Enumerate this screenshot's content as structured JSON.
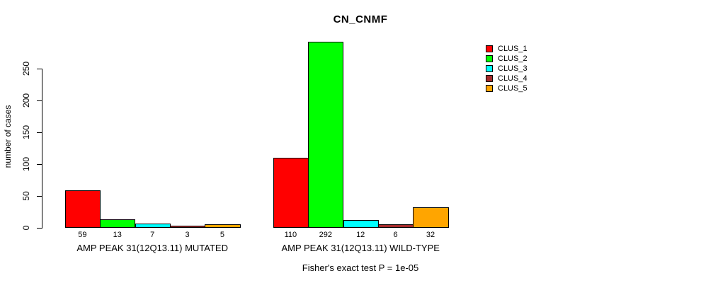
{
  "title": "CN_CNMF",
  "footer": "Fisher's exact test P = 1e-05",
  "colors": {
    "CLUS_1": "#FF0000",
    "CLUS_2": "#00FF00",
    "CLUS_3": "#00FFFF",
    "CLUS_4": "#A52A2A",
    "CLUS_5": "#FFA500"
  },
  "chart_data": {
    "type": "bar",
    "title": "CN_CNMF",
    "xlabel": "",
    "ylabel": "number of cases",
    "yticks": [
      0,
      50,
      100,
      150,
      200,
      250
    ],
    "ylim": [
      0,
      293
    ],
    "grid": false,
    "legend_position": "top-right",
    "legend": [
      {
        "name": "CLUS_1",
        "color": "#FF0000"
      },
      {
        "name": "CLUS_2",
        "color": "#00FF00"
      },
      {
        "name": "CLUS_3",
        "color": "#00FFFF"
      },
      {
        "name": "CLUS_4",
        "color": "#A52A2A"
      },
      {
        "name": "CLUS_5",
        "color": "#FFA500"
      }
    ],
    "categories": [
      "AMP PEAK 31(12Q13.11) MUTATED",
      "AMP PEAK 31(12Q13.11) WILD-TYPE"
    ],
    "series": [
      {
        "name": "CLUS_1",
        "values": [
          59,
          110
        ]
      },
      {
        "name": "CLUS_2",
        "values": [
          13,
          292
        ]
      },
      {
        "name": "CLUS_3",
        "values": [
          7,
          12
        ]
      },
      {
        "name": "CLUS_4",
        "values": [
          3,
          6
        ]
      },
      {
        "name": "CLUS_5",
        "values": [
          5,
          32
        ]
      }
    ],
    "bar_value_labels": [
      [
        "59",
        "13",
        "7",
        "3",
        "5"
      ],
      [
        "110",
        "292",
        "12",
        "6",
        "32"
      ]
    ],
    "annotation": "Fisher's exact test P = 1e-05"
  }
}
